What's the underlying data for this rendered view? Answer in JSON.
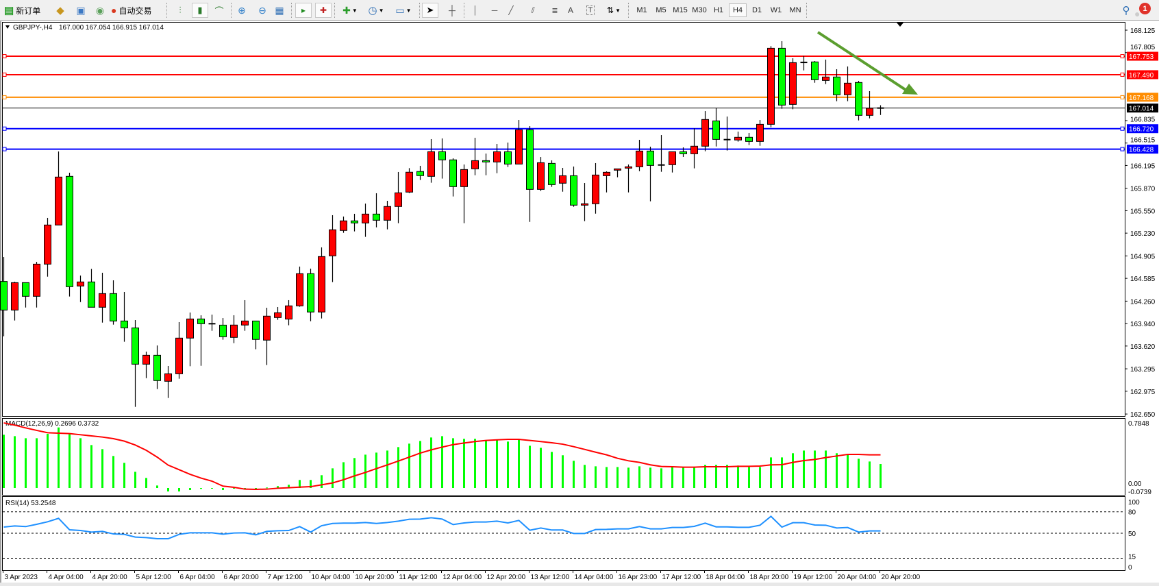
{
  "toolbar": {
    "new_order_label": "新订单",
    "auto_trade_label": "自动交易",
    "timeframes": [
      "M1",
      "M5",
      "M15",
      "M30",
      "H1",
      "H4",
      "D1",
      "W1",
      "MN"
    ],
    "active_timeframe": "H4",
    "draw_text_label": "A",
    "draw_label_tool": "T",
    "notification_count": "1"
  },
  "chart": {
    "header": {
      "symbol": "GBPJPY-,H4",
      "ohlc": "167.000 167.054 166.915 167.014"
    },
    "price_axis_labels": [
      "168.125",
      "167.805",
      "166.835",
      "166.515",
      "166.195",
      "165.870",
      "165.550",
      "165.230",
      "164.905",
      "164.585",
      "164.260",
      "163.940",
      "163.620",
      "163.295",
      "162.975",
      "162.650"
    ],
    "levels": [
      {
        "price": "167.753",
        "color": "#ff0000"
      },
      {
        "price": "167.490",
        "color": "#ff0000"
      },
      {
        "price": "167.168",
        "color": "#ff8c00"
      },
      {
        "price": "166.720",
        "color": "#0000ff"
      },
      {
        "price": "166.428",
        "color": "#0000ff"
      }
    ],
    "current_price": "167.014",
    "arrow_color": "#5b9e2f",
    "colors": {
      "bull": "#ff0000",
      "bear": "#00ff00"
    }
  },
  "macd": {
    "label": "MACD(12,26,9) 0.2696 0.3732",
    "axis_labels": {
      "top": "0.7848",
      "zero": "0.00",
      "bottom": "-0.0739"
    },
    "histogram_color": "#00ff00",
    "signal_color": "#ff0000"
  },
  "rsi": {
    "label": "RSI(14) 53.2548",
    "axis_labels": [
      "100",
      "80",
      "50",
      "15",
      "0"
    ],
    "line_color": "#1e90ff"
  },
  "time_axis": {
    "labels": [
      "3 Apr 2023",
      "4 Apr 04:00",
      "4 Apr 20:00",
      "5 Apr 12:00",
      "6 Apr 04:00",
      "6 Apr 20:00",
      "7 Apr 12:00",
      "10 Apr 04:00",
      "10 Apr 20:00",
      "11 Apr 12:00",
      "12 Apr 04:00",
      "12 Apr 20:00",
      "13 Apr 12:00",
      "14 Apr 04:00",
      "16 Apr 23:00",
      "17 Apr 12:00",
      "18 Apr 04:00",
      "18 Apr 20:00",
      "19 Apr 12:00",
      "20 Apr 04:00",
      "20 Apr 20:00"
    ]
  },
  "chart_data": {
    "type": "candlestick",
    "symbol": "GBPJPY-",
    "timeframe": "H4",
    "ylim": [
      162.62,
      168.24
    ],
    "ohlc": [
      [
        164.541,
        164.889,
        163.759,
        164.133
      ],
      [
        164.133,
        164.537,
        163.984,
        164.524
      ],
      [
        164.524,
        164.524,
        164.169,
        164.329
      ],
      [
        164.329,
        164.821,
        164.169,
        164.788
      ],
      [
        164.788,
        165.447,
        164.609,
        165.346
      ],
      [
        165.346,
        166.395,
        165.346,
        166.03
      ],
      [
        166.04,
        166.092,
        164.326,
        164.466
      ],
      [
        164.476,
        164.625,
        164.247,
        164.534
      ],
      [
        164.534,
        164.72,
        164.173,
        164.173
      ],
      [
        164.173,
        164.665,
        163.954,
        164.368
      ],
      [
        164.368,
        164.557,
        163.925,
        163.977
      ],
      [
        163.977,
        164.391,
        163.681,
        163.879
      ],
      [
        163.879,
        163.99,
        162.752,
        163.361
      ],
      [
        163.361,
        163.54,
        163.162,
        163.488
      ],
      [
        163.488,
        163.628,
        163.006,
        163.127
      ],
      [
        163.117,
        163.335,
        162.879,
        163.224
      ],
      [
        163.224,
        163.961,
        163.153,
        163.733
      ],
      [
        163.733,
        164.098,
        163.332,
        164.006
      ],
      [
        164.006,
        164.058,
        163.338,
        163.938
      ],
      [
        163.938,
        164.068,
        163.837,
        163.935
      ],
      [
        163.918,
        164.019,
        163.71,
        163.752
      ],
      [
        163.743,
        164.059,
        163.661,
        163.919
      ],
      [
        163.919,
        164.274,
        163.837,
        163.977
      ],
      [
        163.977,
        163.977,
        163.574,
        163.714
      ],
      [
        163.704,
        164.166,
        163.349,
        164.046
      ],
      [
        164.026,
        164.176,
        163.994,
        164.095
      ],
      [
        164.004,
        164.274,
        163.916,
        164.193
      ],
      [
        164.193,
        164.753,
        164.18,
        164.652
      ],
      [
        164.652,
        164.724,
        163.974,
        164.105
      ],
      [
        164.105,
        165.027,
        164.013,
        164.896
      ],
      [
        164.906,
        165.486,
        164.532,
        165.278
      ],
      [
        165.268,
        165.467,
        165.235,
        165.405
      ],
      [
        165.405,
        165.506,
        165.255,
        165.375
      ],
      [
        165.375,
        165.652,
        165.177,
        165.502
      ],
      [
        165.502,
        165.799,
        165.313,
        165.414
      ],
      [
        165.414,
        165.691,
        165.284,
        165.61
      ],
      [
        165.61,
        166.102,
        165.372,
        165.805
      ],
      [
        165.815,
        166.157,
        165.802,
        166.099
      ],
      [
        166.109,
        166.19,
        165.988,
        166.05
      ],
      [
        166.04,
        166.571,
        165.949,
        166.392
      ],
      [
        166.392,
        166.581,
        166.008,
        166.275
      ],
      [
        166.275,
        166.297,
        165.753,
        165.893
      ],
      [
        165.893,
        166.209,
        165.372,
        166.137
      ],
      [
        166.147,
        166.59,
        166.056,
        166.264
      ],
      [
        166.264,
        166.365,
        166.056,
        166.245
      ],
      [
        166.245,
        166.502,
        166.085,
        166.391
      ],
      [
        166.391,
        166.522,
        166.173,
        166.215
      ],
      [
        166.215,
        166.844,
        166.215,
        166.704
      ],
      [
        166.704,
        166.756,
        165.391,
        165.854
      ],
      [
        165.854,
        166.316,
        165.831,
        166.235
      ],
      [
        166.225,
        166.268,
        165.89,
        165.922
      ],
      [
        165.942,
        166.16,
        165.821,
        166.049
      ],
      [
        166.049,
        166.18,
        165.606,
        165.629
      ],
      [
        165.629,
        165.945,
        165.401,
        165.649
      ],
      [
        165.649,
        166.229,
        165.508,
        166.059
      ],
      [
        166.049,
        166.111,
        165.811,
        166.098
      ],
      [
        166.128,
        166.147,
        166.027,
        166.147
      ],
      [
        166.157,
        166.209,
        165.811,
        166.176
      ],
      [
        166.176,
        166.561,
        166.114,
        166.401
      ],
      [
        166.401,
        166.463,
        165.684,
        166.196
      ],
      [
        166.202,
        166.629,
        166.105,
        166.202
      ],
      [
        166.206,
        166.391,
        166.095,
        166.391
      ],
      [
        166.391,
        166.453,
        166.317,
        166.362
      ],
      [
        166.362,
        166.724,
        166.154,
        166.47
      ],
      [
        166.47,
        166.971,
        166.398,
        166.851
      ],
      [
        166.831,
        167.017,
        166.466,
        166.567
      ],
      [
        166.564,
        166.893,
        166.408,
        166.564
      ],
      [
        166.558,
        166.678,
        166.535,
        166.597
      ],
      [
        166.597,
        166.659,
        166.486,
        166.538
      ],
      [
        166.538,
        166.844,
        166.476,
        166.782
      ],
      [
        166.782,
        167.897,
        166.74,
        167.867
      ],
      [
        167.867,
        167.968,
        167.004,
        167.056
      ],
      [
        167.066,
        167.724,
        166.997,
        167.662
      ],
      [
        167.665,
        167.757,
        167.551,
        167.665
      ],
      [
        167.672,
        167.685,
        167.375,
        167.418
      ],
      [
        167.408,
        167.705,
        167.356,
        167.457
      ],
      [
        167.457,
        167.568,
        167.112,
        167.203
      ],
      [
        167.203,
        167.607,
        167.112,
        167.369
      ],
      [
        167.379,
        167.402,
        166.838,
        166.91
      ],
      [
        166.91,
        167.255,
        166.867,
        167.011
      ],
      [
        167.0,
        167.054,
        166.915,
        167.014
      ]
    ],
    "macd_histogram": [
      0.599,
      0.583,
      0.56,
      0.56,
      0.609,
      0.681,
      0.617,
      0.56,
      0.483,
      0.437,
      0.36,
      0.283,
      0.182,
      0.113,
      0.028,
      -0.039,
      -0.039,
      -0.023,
      -0.01,
      -0.005,
      -0.023,
      -0.008,
      -0.003,
      -0.005,
      0.005,
      0.021,
      0.036,
      0.09,
      0.09,
      0.144,
      0.221,
      0.29,
      0.337,
      0.375,
      0.398,
      0.421,
      0.46,
      0.499,
      0.529,
      0.568,
      0.583,
      0.56,
      0.553,
      0.553,
      0.537,
      0.537,
      0.522,
      0.545,
      0.475,
      0.452,
      0.406,
      0.368,
      0.306,
      0.26,
      0.244,
      0.236,
      0.236,
      0.229,
      0.244,
      0.229,
      0.221,
      0.236,
      0.229,
      0.229,
      0.26,
      0.26,
      0.26,
      0.252,
      0.236,
      0.236,
      0.344,
      0.344,
      0.391,
      0.421,
      0.421,
      0.421,
      0.391,
      0.375,
      0.329,
      0.298,
      0.2696
    ],
    "macd_signal": [
      0.732,
      0.707,
      0.676,
      0.648,
      0.622,
      0.617,
      0.612,
      0.599,
      0.586,
      0.573,
      0.555,
      0.527,
      0.483,
      0.424,
      0.347,
      0.257,
      0.206,
      0.154,
      0.111,
      0.077,
      0.021,
      0.008,
      -0.013,
      -0.015,
      -0.013,
      -0.003,
      0.003,
      0.01,
      0.015,
      0.036,
      0.057,
      0.093,
      0.136,
      0.175,
      0.218,
      0.26,
      0.303,
      0.347,
      0.393,
      0.429,
      0.46,
      0.488,
      0.506,
      0.522,
      0.535,
      0.542,
      0.547,
      0.547,
      0.535,
      0.522,
      0.509,
      0.493,
      0.465,
      0.434,
      0.403,
      0.373,
      0.334,
      0.306,
      0.288,
      0.26,
      0.242,
      0.239,
      0.234,
      0.234,
      0.239,
      0.239,
      0.239,
      0.244,
      0.244,
      0.247,
      0.26,
      0.262,
      0.288,
      0.308,
      0.321,
      0.342,
      0.36,
      0.378,
      0.378,
      0.373,
      0.3732
    ],
    "rsi": [
      58.6,
      60.2,
      59.3,
      62.5,
      66.0,
      70.8,
      54.8,
      53.8,
      51.6,
      52.6,
      49.0,
      48.4,
      44.6,
      43.9,
      42.3,
      42.3,
      48.4,
      50.6,
      50.6,
      50.6,
      48.7,
      50.3,
      50.6,
      47.8,
      52.6,
      53.5,
      53.8,
      59.3,
      51.6,
      60.5,
      63.7,
      64.1,
      64.1,
      65.0,
      63.7,
      65.0,
      66.9,
      69.5,
      69.8,
      71.7,
      69.8,
      62.1,
      64.4,
      65.7,
      65.7,
      66.9,
      64.4,
      67.9,
      54.2,
      57.3,
      54.5,
      54.5,
      49.7,
      49.7,
      55.1,
      55.4,
      56.1,
      56.1,
      59.3,
      56.1,
      56.1,
      58.0,
      58.0,
      59.6,
      64.1,
      58.9,
      58.9,
      58.3,
      58.3,
      61.2,
      73.6,
      58.6,
      64.7,
      64.7,
      61.5,
      61.2,
      57.3,
      58.0,
      51.6,
      53.2,
      53.25
    ],
    "rsi_levels": [
      80,
      50,
      15
    ],
    "macd_ylim": [
      -0.0739,
      0.7848
    ],
    "rsi_ylim": [
      0,
      100
    ]
  }
}
